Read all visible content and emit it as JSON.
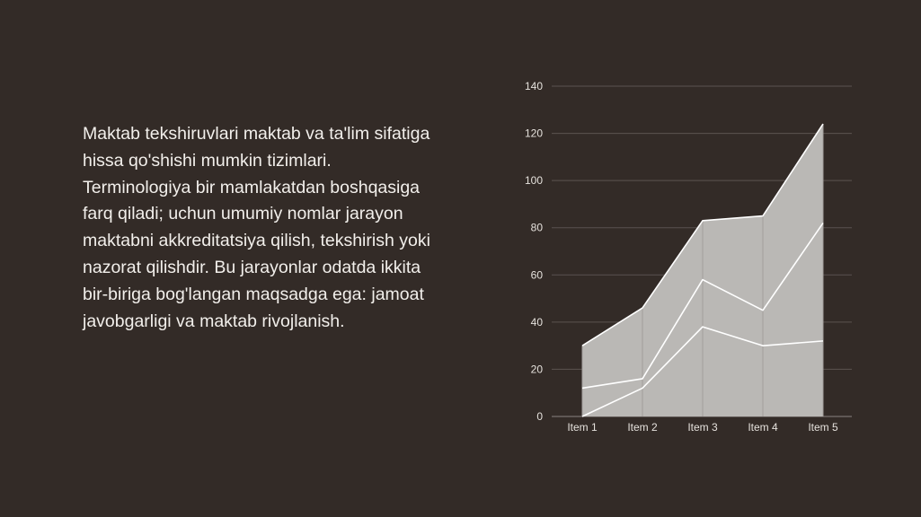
{
  "paragraph": "Maktab tekshiruvlari maktab va ta'lim sifatiga hissa qo'shishi mumkin tizimlari. Terminologiya bir mamlakatdan boshqasiga farq qiladi; uchun umumiy nomlar jarayon maktabni akkreditatsiya qilish, tekshirish yoki nazorat qilishdir. Bu jarayonlar odatda ikkita bir-biriga bog'langan maqsadga ega: jamoat javobgarligi va maktab rivojlanish.",
  "colors": {
    "background": "#332b27",
    "area_fill": "#bab8b5",
    "lines": "#ffffff",
    "grid": "#5b5350",
    "text": "#f2efeb"
  },
  "chart_data": {
    "type": "area",
    "stacked": true,
    "categories": [
      "Item 1",
      "Item 2",
      "Item 3",
      "Item 4",
      "Item 5"
    ],
    "series": [
      {
        "values": [
          0,
          12,
          38,
          30,
          32
        ]
      },
      {
        "values": [
          12,
          4,
          20,
          15,
          50
        ]
      },
      {
        "values": [
          18,
          30,
          25,
          40,
          42
        ]
      }
    ],
    "cumulative_tops": [
      30,
      46,
      83,
      85,
      124
    ],
    "ylim": [
      0,
      140
    ],
    "yticks": [
      0,
      20,
      40,
      60,
      80,
      100,
      120,
      140
    ],
    "grid": true,
    "legend": "none",
    "title": "",
    "xlabel": "",
    "ylabel": ""
  }
}
